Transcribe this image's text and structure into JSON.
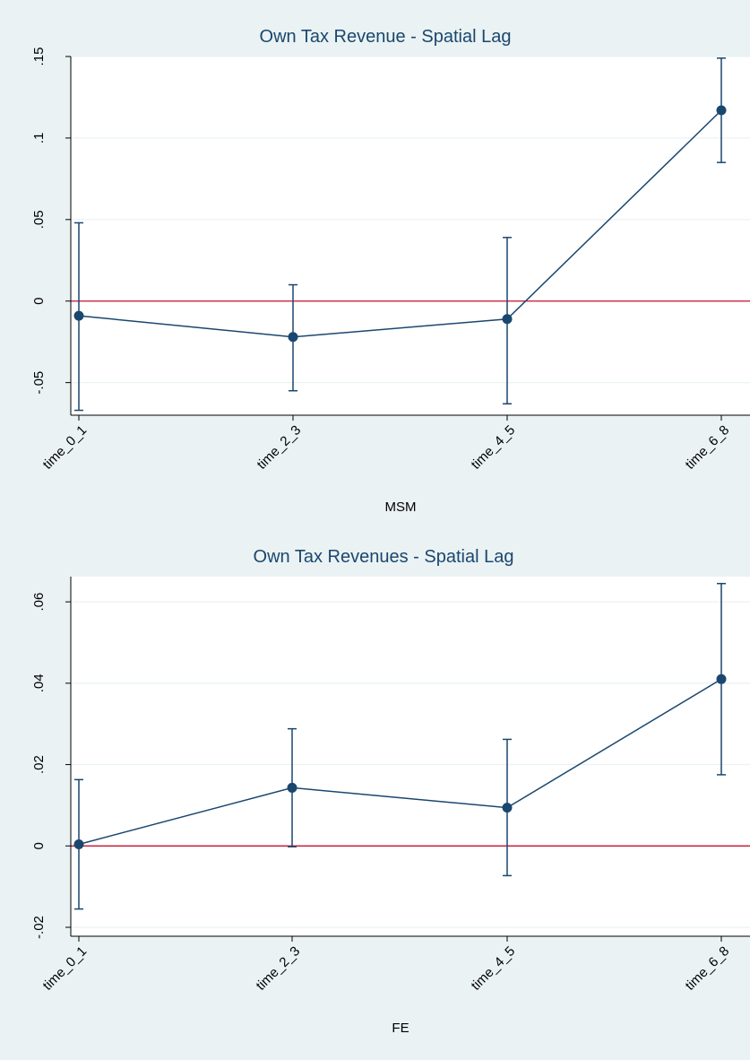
{
  "chart_data": [
    {
      "type": "line",
      "title": "Own Tax Revenue - Spatial Lag",
      "xlabel": "MSM",
      "ylabel": "",
      "categories": [
        "time_0_1",
        "time_2_3",
        "time_4_5",
        "time_6_8"
      ],
      "values": [
        -0.009,
        -0.022,
        -0.011,
        0.117
      ],
      "ci_low": [
        -0.067,
        -0.055,
        -0.063,
        0.085
      ],
      "ci_high": [
        0.048,
        0.01,
        0.039,
        0.149
      ],
      "ylim": [
        -0.07,
        0.15
      ],
      "yticks": [
        -0.05,
        0,
        0.05,
        0.1,
        0.15
      ],
      "ytick_labels": [
        "-.05",
        "0",
        ".05",
        ".1",
        ".15"
      ],
      "reference_line": 0,
      "grid": true,
      "colors": {
        "series": "#1a476f",
        "reference": "#c8102e",
        "background": "#eaf2f3"
      }
    },
    {
      "type": "line",
      "title": "Own Tax Revenues - Spatial Lag",
      "xlabel": "FE",
      "ylabel": "",
      "categories": [
        "time_0_1",
        "time_2_3",
        "time_4_5",
        "time_6_8"
      ],
      "values": [
        0.0004,
        0.0143,
        0.0094,
        0.041
      ],
      "ci_low": [
        -0.0155,
        -0.0002,
        -0.0073,
        0.0175
      ],
      "ci_high": [
        0.0163,
        0.0288,
        0.0262,
        0.0645
      ],
      "ylim": [
        -0.0222,
        0.0662
      ],
      "yticks": [
        -0.02,
        0,
        0.02,
        0.04,
        0.06
      ],
      "ytick_labels": [
        "-.02",
        "0",
        ".02",
        ".04",
        ".06"
      ],
      "reference_line": 0,
      "grid": true,
      "colors": {
        "series": "#1a476f",
        "reference": "#c8102e",
        "background": "#eaf2f3"
      }
    }
  ]
}
